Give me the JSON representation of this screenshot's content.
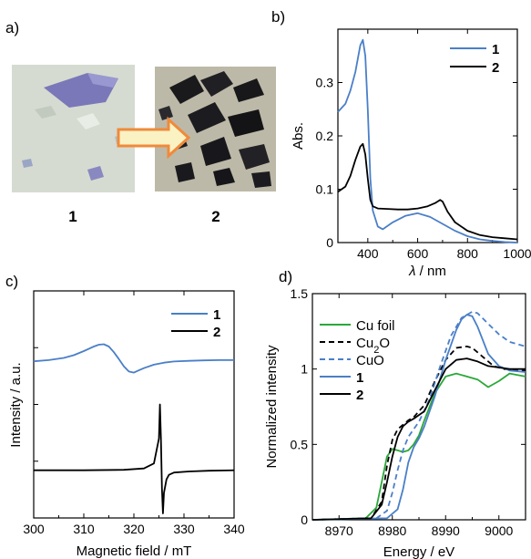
{
  "panels": {
    "a": {
      "label": "a)",
      "sample1": "1",
      "sample2": "2"
    },
    "b": {
      "label": "b)"
    },
    "c": {
      "label": "c)"
    },
    "d": {
      "label": "d)"
    }
  },
  "colors": {
    "sample1": "#4a7fc8",
    "sample2": "#000000",
    "cu_foil": "#2aa838",
    "arrow_fill": "#fbf2c4",
    "arrow_stroke": "#f08a3a"
  },
  "chart_data": [
    {
      "panel": "b",
      "type": "line",
      "xlabel_symbol": "λ",
      "xlabel_unit": " / nm",
      "ylabel": "Abs.",
      "xlim": [
        280,
        1000
      ],
      "ylim": [
        0,
        0.4
      ],
      "xticks": [
        400,
        600,
        800,
        1000
      ],
      "yticks": [
        0,
        0.1,
        0.2,
        0.3
      ],
      "ytick_labels": [
        "0",
        "0.1",
        "0.2",
        "0.3"
      ],
      "legend_position": "top-right",
      "series": [
        {
          "name": "1",
          "color": "#4a7fc8",
          "dashed": false,
          "x": [
            280,
            310,
            330,
            350,
            360,
            370,
            380,
            390,
            400,
            410,
            420,
            440,
            460,
            500,
            550,
            600,
            650,
            700,
            750,
            800,
            850,
            900,
            950,
            1000
          ],
          "y": [
            0.245,
            0.26,
            0.285,
            0.32,
            0.345,
            0.37,
            0.38,
            0.35,
            0.25,
            0.12,
            0.06,
            0.03,
            0.025,
            0.038,
            0.05,
            0.055,
            0.048,
            0.035,
            0.022,
            0.012,
            0.006,
            0.003,
            0.001,
            0.0
          ]
        },
        {
          "name": "2",
          "color": "#000000",
          "dashed": false,
          "x": [
            280,
            310,
            330,
            350,
            370,
            380,
            390,
            400,
            410,
            420,
            440,
            480,
            520,
            560,
            600,
            640,
            670,
            690,
            700,
            720,
            750,
            800,
            850,
            900,
            950,
            1000
          ],
          "y": [
            0.095,
            0.105,
            0.125,
            0.155,
            0.18,
            0.185,
            0.165,
            0.12,
            0.08,
            0.068,
            0.064,
            0.063,
            0.062,
            0.062,
            0.064,
            0.068,
            0.074,
            0.08,
            0.077,
            0.058,
            0.038,
            0.022,
            0.014,
            0.01,
            0.008,
            0.006
          ]
        }
      ]
    },
    {
      "panel": "c",
      "type": "line",
      "xlabel": "Magnetic field / mT",
      "ylabel": "Intensity / a.u.",
      "xlim": [
        300,
        340
      ],
      "ylim": [
        0,
        1
      ],
      "xticks": [
        300,
        310,
        320,
        330,
        340
      ],
      "yticks": [],
      "legend_position": "top-right",
      "series": [
        {
          "name": "1",
          "color": "#4a7fc8",
          "dashed": false,
          "x": [
            300,
            303,
            306,
            308,
            310,
            312,
            313,
            314,
            315,
            316,
            317,
            318,
            319,
            320,
            321,
            322,
            324,
            326,
            328,
            331,
            334,
            337,
            340
          ],
          "y": [
            0.69,
            0.695,
            0.705,
            0.717,
            0.735,
            0.755,
            0.763,
            0.765,
            0.755,
            0.73,
            0.7,
            0.668,
            0.645,
            0.64,
            0.65,
            0.66,
            0.675,
            0.684,
            0.689,
            0.692,
            0.694,
            0.695,
            0.695
          ]
        },
        {
          "name": "2",
          "color": "#000000",
          "dashed": false,
          "x": [
            300,
            310,
            318,
            322,
            324,
            325,
            325.2,
            325.4,
            325.6,
            325.8,
            326,
            326.5,
            327,
            328,
            331,
            335,
            340
          ],
          "y": [
            0.21,
            0.21,
            0.212,
            0.218,
            0.24,
            0.35,
            0.5,
            0.35,
            0.13,
            0.02,
            0.11,
            0.17,
            0.19,
            0.2,
            0.205,
            0.208,
            0.21
          ]
        }
      ]
    },
    {
      "panel": "d",
      "type": "line",
      "xlabel": "Energy / eV",
      "ylabel": "Normalized intensity",
      "xlim": [
        8965,
        9005
      ],
      "ylim": [
        0,
        1.5
      ],
      "xticks": [
        8970,
        8980,
        8990,
        9000
      ],
      "yticks": [
        0,
        0.5,
        1,
        1.5
      ],
      "ytick_labels": [
        "0",
        "0.5",
        "1",
        "1.5"
      ],
      "legend_position": "top-left",
      "series": [
        {
          "name": "Cu foil",
          "color": "#2aa838",
          "dashed": false,
          "x": [
            8965,
            8975,
            8977,
            8978,
            8979,
            8980,
            8981,
            8982,
            8983,
            8984,
            8985,
            8986,
            8988,
            8990,
            8992,
            8994,
            8996,
            8998,
            9000,
            9002,
            9005
          ],
          "y": [
            0.0,
            0.01,
            0.08,
            0.25,
            0.42,
            0.47,
            0.46,
            0.45,
            0.46,
            0.5,
            0.56,
            0.66,
            0.84,
            0.95,
            0.97,
            0.95,
            0.93,
            0.88,
            0.92,
            0.97,
            0.95
          ]
        },
        {
          "name": "Cu2O",
          "label_parts": [
            "Cu",
            "2",
            "O"
          ],
          "color": "#000000",
          "dashed": true,
          "x": [
            8965,
            8976,
            8978,
            8979,
            8980,
            8981,
            8982,
            8983,
            8984,
            8986,
            8988,
            8990,
            8992,
            8994,
            8995,
            8997,
            8999,
            9001,
            9005
          ],
          "y": [
            0.0,
            0.01,
            0.12,
            0.36,
            0.53,
            0.6,
            0.63,
            0.66,
            0.68,
            0.76,
            0.92,
            1.06,
            1.14,
            1.15,
            1.14,
            1.08,
            1.02,
            1.0,
            0.99
          ]
        },
        {
          "name": "CuO",
          "color": "#4a7fc8",
          "dashed": true,
          "x": [
            8965,
            8977,
            8979,
            8980,
            8981,
            8982,
            8983,
            8984,
            8985,
            8987,
            8989,
            8991,
            8993,
            8995,
            8996,
            8998,
            9000,
            9002,
            9005
          ],
          "y": [
            0.0,
            0.01,
            0.06,
            0.18,
            0.33,
            0.46,
            0.55,
            0.6,
            0.65,
            0.8,
            1.02,
            1.22,
            1.34,
            1.38,
            1.37,
            1.3,
            1.23,
            1.18,
            1.15
          ]
        },
        {
          "name": "1",
          "color": "#4a7fc8",
          "dashed": false,
          "bold": true,
          "x": [
            8965,
            8979,
            8981,
            8982,
            8983,
            8984,
            8985,
            8986,
            8988,
            8990,
            8992,
            8993,
            8994,
            8995,
            8996,
            8998,
            9000,
            9002,
            9005
          ],
          "y": [
            0.0,
            0.01,
            0.07,
            0.2,
            0.38,
            0.48,
            0.54,
            0.62,
            0.82,
            1.06,
            1.26,
            1.33,
            1.36,
            1.35,
            1.28,
            1.1,
            1.02,
            0.99,
            0.98
          ]
        },
        {
          "name": "2",
          "color": "#000000",
          "dashed": false,
          "bold": true,
          "x": [
            8965,
            8976,
            8978,
            8979,
            8980,
            8981,
            8982,
            8983,
            8984,
            8986,
            8988,
            8990,
            8992,
            8994,
            8996,
            8998,
            9000,
            9002,
            9005
          ],
          "y": [
            0.0,
            0.01,
            0.1,
            0.25,
            0.42,
            0.55,
            0.62,
            0.65,
            0.67,
            0.72,
            0.86,
            1.0,
            1.06,
            1.07,
            1.05,
            1.02,
            1.01,
            1.0,
            1.0
          ]
        }
      ]
    }
  ]
}
